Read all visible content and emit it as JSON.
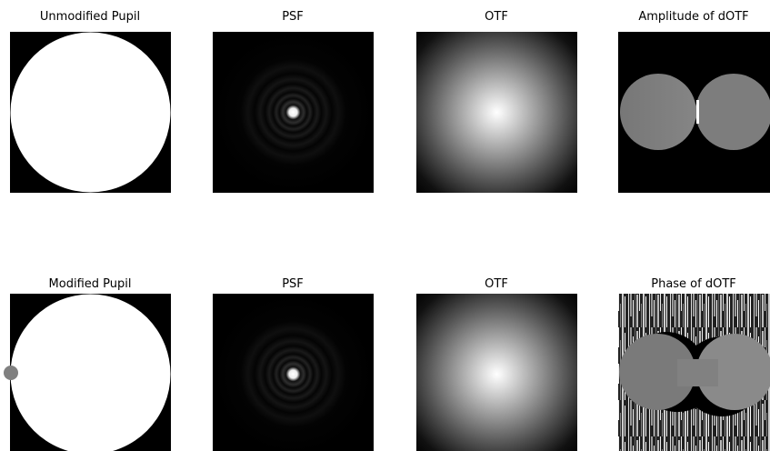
{
  "panels": [
    {
      "title": "Unmodified Pupil"
    },
    {
      "title": "PSF"
    },
    {
      "title": "OTF"
    },
    {
      "title": "Amplitude of dOTF"
    },
    {
      "title": "Modified Pupil"
    },
    {
      "title": "PSF"
    },
    {
      "title": "OTF"
    },
    {
      "title": "Phase of dOTF"
    }
  ]
}
